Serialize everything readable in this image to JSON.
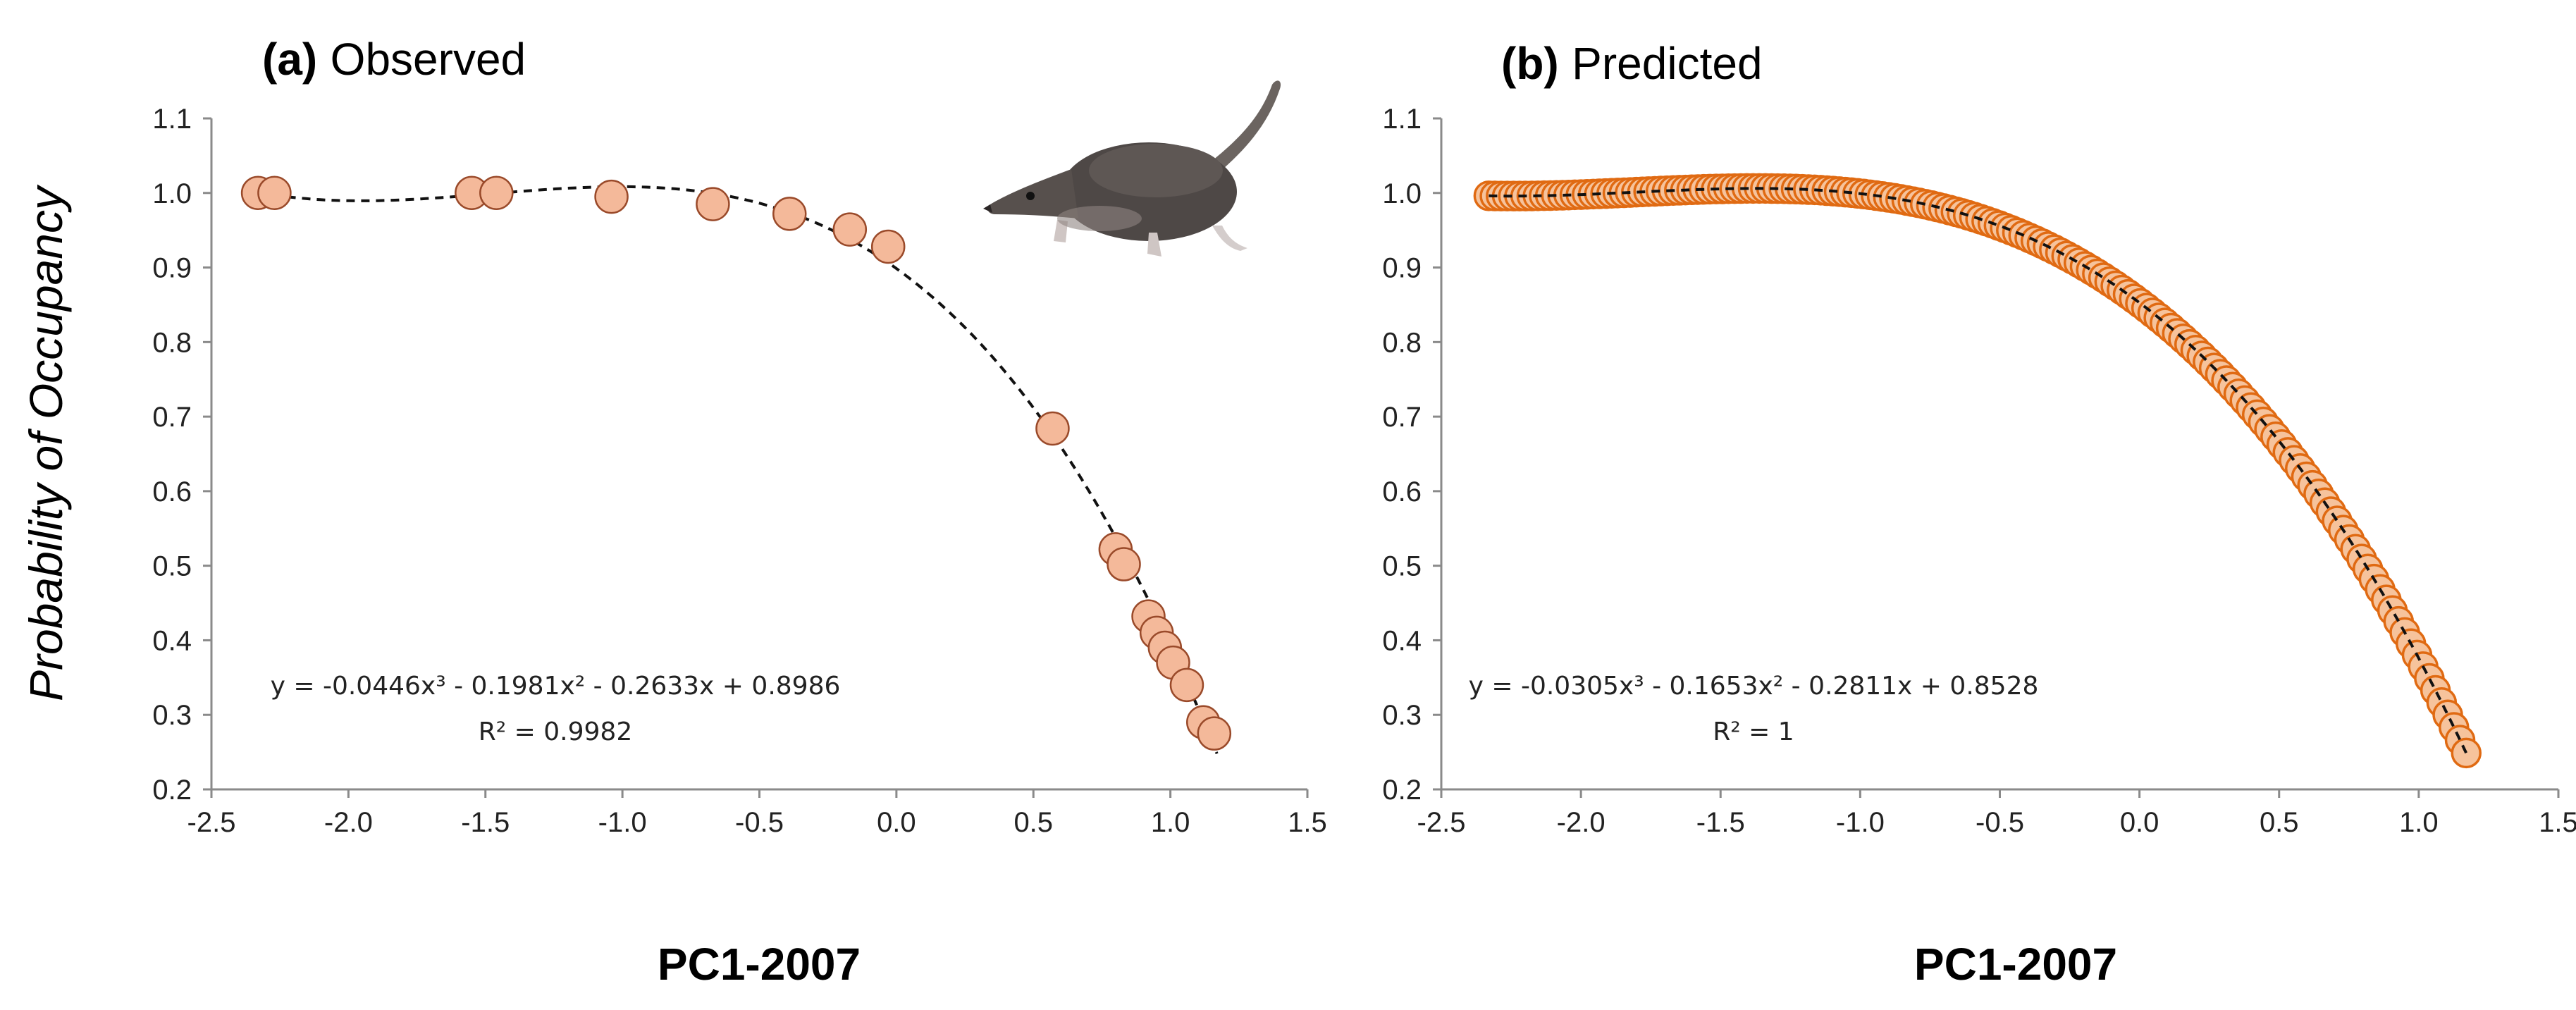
{
  "colors": {
    "observed_fill": "#f4b99a",
    "observed_edge": "#9a4a2a",
    "predicted_fill": "#f6c39c",
    "predicted_edge": "#e06a12",
    "trend": "#111111",
    "axis": "#8a8a8a"
  },
  "shared": {
    "ylabel": "Probability of Occupancy",
    "icon": "shrew-icon"
  },
  "chart_data": [
    {
      "type": "scatter",
      "panel_letter": "(a)",
      "panel_name": "Observed",
      "xlabel": "PC1-2007",
      "xlim": [
        -2.5,
        1.5
      ],
      "ylim": [
        0.2,
        1.1
      ],
      "x_ticks": [
        "-2.5",
        "-2.0",
        "-1.5",
        "-1.0",
        "-0.5",
        "0.0",
        "0.5",
        "1.0",
        "1.5"
      ],
      "y_ticks": [
        "0.2",
        "0.3",
        "0.4",
        "0.5",
        "0.6",
        "0.7",
        "0.8",
        "0.9",
        "1.0",
        "1.1"
      ],
      "grid": false,
      "legend": "none",
      "series": [
        {
          "points": [
            {
              "x": -2.33,
              "y": 1.0
            },
            {
              "x": -2.27,
              "y": 1.0
            },
            {
              "x": -1.55,
              "y": 1.0
            },
            {
              "x": -1.46,
              "y": 1.0
            },
            {
              "x": -1.04,
              "y": 0.995
            },
            {
              "x": -0.67,
              "y": 0.985
            },
            {
              "x": -0.39,
              "y": 0.972
            },
            {
              "x": -0.17,
              "y": 0.951
            },
            {
              "x": -0.03,
              "y": 0.928
            },
            {
              "x": 0.57,
              "y": 0.684
            },
            {
              "x": 0.8,
              "y": 0.522
            },
            {
              "x": 0.83,
              "y": 0.502
            },
            {
              "x": 0.92,
              "y": 0.432
            },
            {
              "x": 0.95,
              "y": 0.41
            },
            {
              "x": 0.98,
              "y": 0.39
            },
            {
              "x": 1.01,
              "y": 0.37
            },
            {
              "x": 1.06,
              "y": 0.34
            },
            {
              "x": 1.12,
              "y": 0.29
            },
            {
              "x": 1.16,
              "y": 0.275
            }
          ]
        }
      ],
      "trendline": {
        "type": "polynomial",
        "coefficients": [
          -0.0446,
          -0.1981,
          -0.2633,
          0.8986
        ],
        "x_range": [
          -2.33,
          1.17
        ]
      },
      "equation": "y = -0.0446x³ - 0.1981x² - 0.2633x + 0.8986",
      "r_squared": "R² = 0.9982"
    },
    {
      "type": "scatter",
      "panel_letter": "(b)",
      "panel_name": "Predicted",
      "xlabel": "PC1-2007",
      "xlim": [
        -2.5,
        1.5
      ],
      "ylim": [
        0.2,
        1.1
      ],
      "x_ticks": [
        "-2.5",
        "-2.0",
        "-1.5",
        "-1.0",
        "-0.5",
        "0.0",
        "0.5",
        "1.0",
        "1.5"
      ],
      "y_ticks": [
        "0.2",
        "0.3",
        "0.4",
        "0.5",
        "0.6",
        "0.7",
        "0.8",
        "0.9",
        "1.0",
        "1.1"
      ],
      "grid": false,
      "legend": "none",
      "series": [
        {
          "dense_points": {
            "count": 160,
            "x_range": [
              -2.33,
              1.17
            ],
            "coefficients": [
              -0.0305,
              -0.1653,
              -0.2811,
              0.8528
            ]
          }
        }
      ],
      "trendline": {
        "type": "polynomial",
        "coefficients": [
          -0.0305,
          -0.1653,
          -0.2811,
          0.8528
        ],
        "x_range": [
          -2.33,
          1.17
        ]
      },
      "equation": "y = -0.0305x³ - 0.1653x² - 0.2811x + 0.8528",
      "r_squared": "R² = 1"
    }
  ]
}
